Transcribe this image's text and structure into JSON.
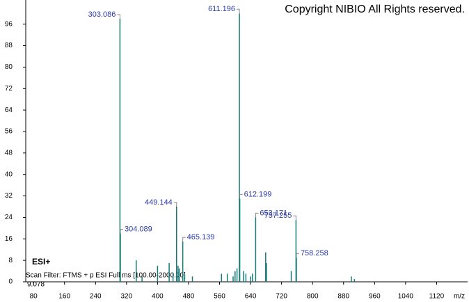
{
  "chart_data": {
    "type": "spectrum",
    "title": "Copyright NIBIO All Rights reserved.",
    "ionization": "ESI+",
    "scan_filter": "Scan Filter: FTMS + p ESI Full ms [100.00-2000.00]",
    "normalization": "9.078",
    "x_label": "m/z",
    "xlim": [
      60,
      1200
    ],
    "xticks": [
      80,
      160,
      240,
      320,
      400,
      480,
      560,
      640,
      720,
      800,
      880,
      960,
      1040,
      1120
    ],
    "ylim": [
      0,
      105
    ],
    "yticks": [
      0,
      8,
      16,
      24,
      32,
      40,
      48,
      56,
      64,
      72,
      80,
      88,
      96
    ],
    "color": "#167a78",
    "label_color": "#2a3aa8",
    "series": [
      {
        "x": [
          303.086,
          304.089,
          449.144,
          465.139,
          611.196,
          612.199,
          653.171,
          757.255,
          758.258
        ],
        "values": [
          98,
          18,
          28,
          15,
          100,
          31,
          24,
          23,
          9
        ]
      },
      {
        "x": [
          345,
          360,
          400,
          430,
          440,
          453,
          456,
          470,
          490,
          565,
          580,
          595,
          600,
          605,
          622,
          628,
          640,
          645,
          679,
          681,
          745,
          900,
          908
        ],
        "values": [
          8,
          2,
          6,
          7,
          3,
          6,
          5,
          3,
          2,
          3,
          3,
          2,
          4,
          5,
          4,
          3,
          2,
          3,
          11,
          7,
          4,
          2,
          1
        ]
      }
    ]
  }
}
